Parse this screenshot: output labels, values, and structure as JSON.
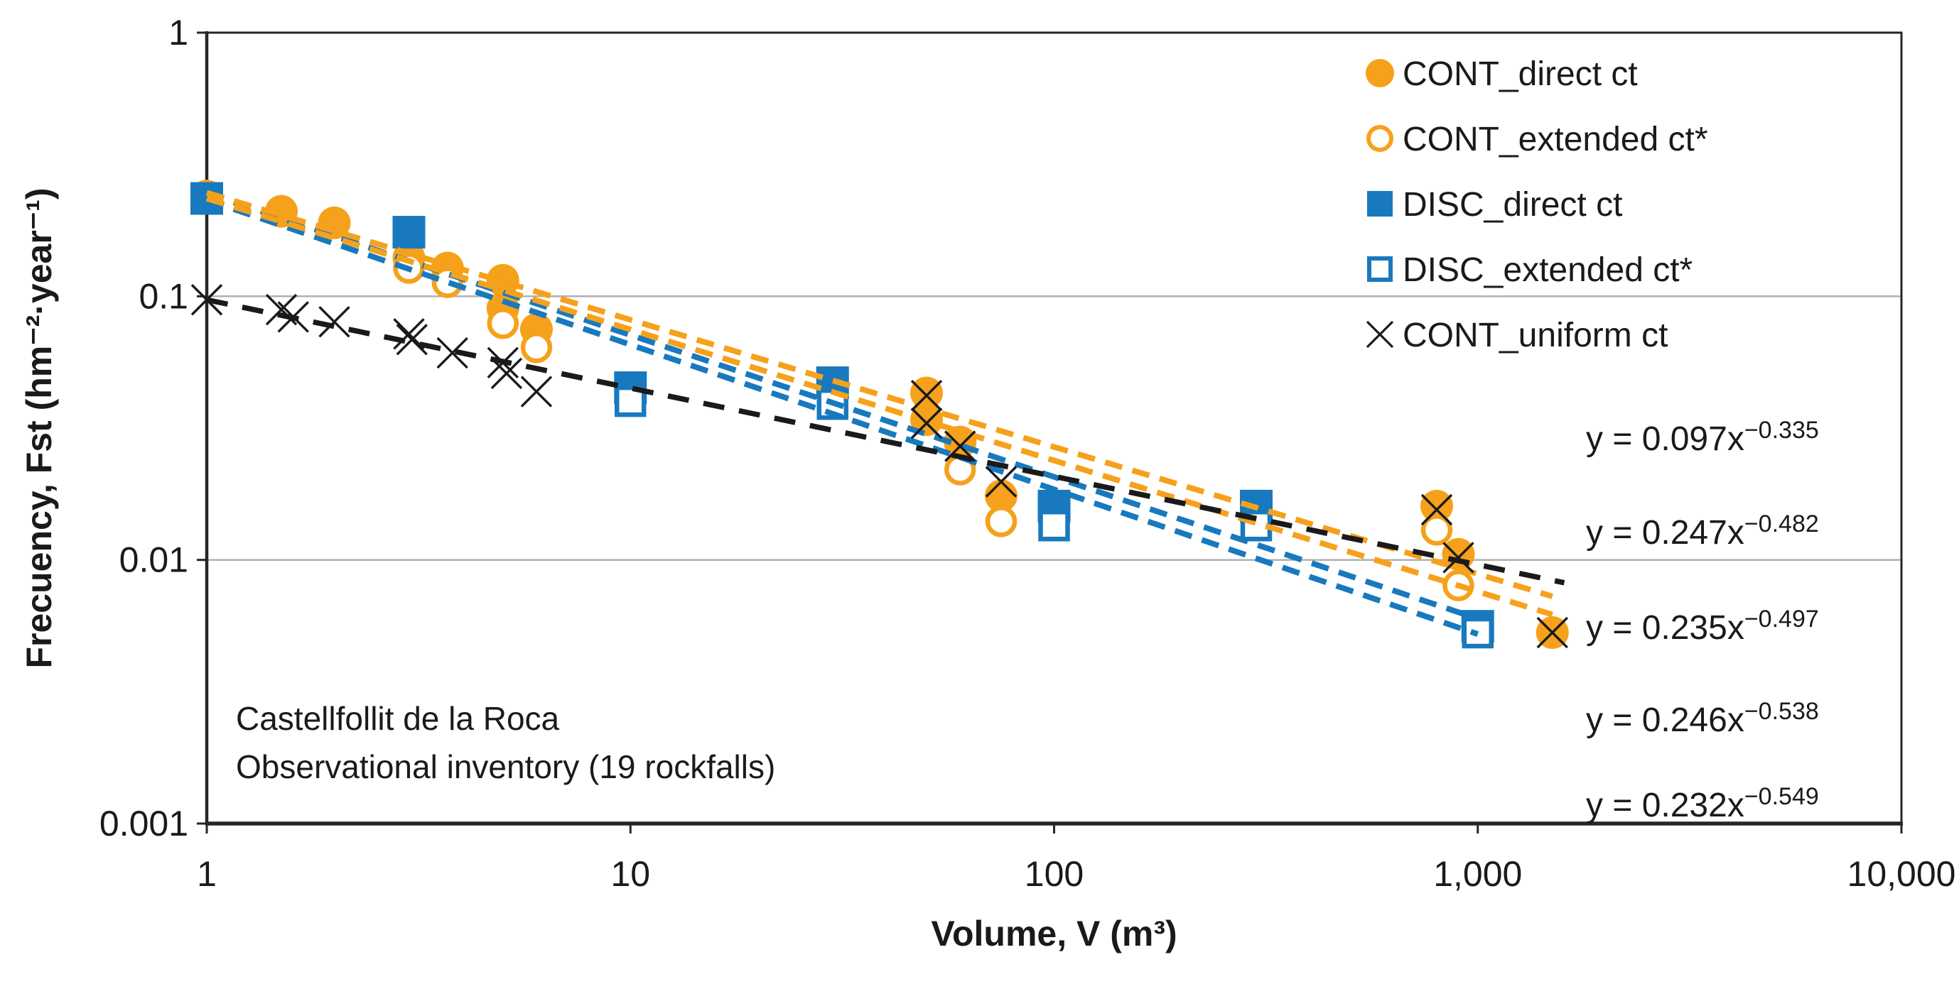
{
  "figure": {
    "background": "#FFFFFF",
    "annotation_lines": [
      "Castellfollit de la Roca",
      "Observational inventory (19 rockfalls)"
    ]
  },
  "chart_data": {
    "type": "scatter",
    "title": "",
    "xlabel": "Volume, V (m³)",
    "ylabel": "Frecuency, Fst (hm⁻²·year⁻¹)",
    "x_axis": {
      "scale": "log",
      "range": [
        1,
        10000
      ],
      "tick_values": [
        1,
        10,
        100,
        1000,
        10000
      ],
      "tick_labels": [
        "1",
        "10",
        "100",
        "1,000",
        "10,000"
      ]
    },
    "y_axis": {
      "scale": "log",
      "range": [
        0.001,
        1
      ],
      "tick_values": [
        1,
        0.1,
        0.01,
        0.001
      ],
      "tick_labels": [
        "1",
        "0.1",
        "0.01",
        "0.001"
      ]
    },
    "gridlines_y": [
      0.1,
      0.01
    ],
    "grid": "horizontal-only",
    "legend_position": "top-right-inside",
    "colors": {
      "orange": "#F6A11B",
      "blue": "#1879BF",
      "black": "#1A1A1A",
      "grid": "#ADADAD",
      "axis": "#262626",
      "background": "#FFFFFF"
    },
    "series": [
      {
        "name": "CONT_direct ct",
        "marker": "circle-filled",
        "color_key": "orange",
        "points": [
          [
            1,
            0.24
          ],
          [
            1.5,
            0.21
          ],
          [
            2,
            0.19
          ],
          [
            3,
            0.14
          ],
          [
            3.7,
            0.128
          ],
          [
            5,
            0.115
          ],
          [
            5,
            0.09
          ],
          [
            6,
            0.075
          ],
          [
            50,
            0.043
          ],
          [
            50,
            0.034
          ],
          [
            60,
            0.028
          ],
          [
            75,
            0.0175
          ],
          [
            800,
            0.016
          ],
          [
            900,
            0.0105
          ],
          [
            1500,
            0.0053
          ]
        ]
      },
      {
        "name": "CONT_extended ct*",
        "marker": "circle-open",
        "color_key": "orange",
        "points": [
          [
            3,
            0.128
          ],
          [
            3.7,
            0.113
          ],
          [
            5,
            0.079
          ],
          [
            6,
            0.064
          ],
          [
            60,
            0.022
          ],
          [
            75,
            0.014
          ],
          [
            800,
            0.013
          ],
          [
            900,
            0.008
          ]
        ]
      },
      {
        "name": "DISC_direct ct",
        "marker": "square-filled",
        "color_key": "blue",
        "points": [
          [
            1,
            0.235
          ],
          [
            3,
            0.175
          ],
          [
            10,
            0.045
          ],
          [
            30,
            0.047
          ],
          [
            100,
            0.016
          ],
          [
            300,
            0.016
          ],
          [
            1000,
            0.0056
          ]
        ]
      },
      {
        "name": "DISC_extended ct*",
        "marker": "square-open",
        "color_key": "blue",
        "points": [
          [
            10,
            0.04
          ],
          [
            30,
            0.039
          ],
          [
            100,
            0.0135
          ],
          [
            300,
            0.0135
          ],
          [
            1000,
            0.0053
          ]
        ]
      },
      {
        "name": "CONT_uniform ct",
        "marker": "x",
        "color_key": "black",
        "points": [
          [
            1,
            0.097
          ],
          [
            1.5,
            0.089
          ],
          [
            1.6,
            0.0835
          ],
          [
            2,
            0.08
          ],
          [
            3,
            0.072
          ],
          [
            3.05,
            0.0685
          ],
          [
            3.8,
            0.061
          ],
          [
            5,
            0.056
          ],
          [
            5.1,
            0.051
          ],
          [
            6,
            0.0435
          ],
          [
            50,
            0.042
          ],
          [
            50,
            0.033
          ],
          [
            60,
            0.027
          ],
          [
            75,
            0.0198
          ],
          [
            800,
            0.0155
          ],
          [
            900,
            0.0102
          ],
          [
            1500,
            0.0053
          ]
        ]
      }
    ],
    "trendlines": [
      {
        "equation": "y = 0.097x",
        "exponent": "−0.335",
        "a": 0.097,
        "b": -0.335,
        "color_key": "black",
        "x_range": [
          1,
          1600
        ]
      },
      {
        "equation": "y = 0.247x",
        "exponent": "−0.482",
        "a": 0.247,
        "b": -0.482,
        "color_key": "orange",
        "x_range": [
          1,
          1500
        ]
      },
      {
        "equation": "y = 0.235x",
        "exponent": "−0.497",
        "a": 0.235,
        "b": -0.497,
        "color_key": "orange",
        "x_range": [
          1,
          1500
        ]
      },
      {
        "equation": "y = 0.246x",
        "exponent": "−0.538",
        "a": 0.246,
        "b": -0.538,
        "color_key": "blue",
        "x_range": [
          1,
          1000
        ]
      },
      {
        "equation": "y = 0.232x",
        "exponent": "−0.549",
        "a": 0.232,
        "b": -0.549,
        "color_key": "blue",
        "x_range": [
          1,
          1000
        ]
      }
    ]
  }
}
